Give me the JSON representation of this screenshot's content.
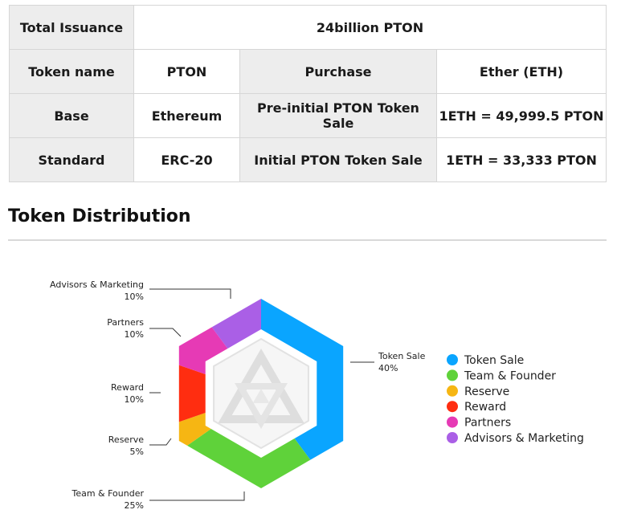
{
  "table": {
    "row1": {
      "label": "Total Issuance",
      "value": "24billion PTON"
    },
    "row2": {
      "label": "Token name",
      "value": "PTON",
      "label2": "Purchase",
      "value2": "Ether (ETH)"
    },
    "row3": {
      "label": "Base",
      "value": "Ethereum",
      "label2": "Pre-initial PTON Token Sale",
      "value2": "1ETH = 49,999.5 PTON"
    },
    "row4": {
      "label": "Standard",
      "value": "ERC-20",
      "label2": "Initial PTON Token Sale",
      "value2": "1ETH = 33,333 PTON"
    }
  },
  "section": {
    "title": "Token Distribution"
  },
  "chart_data": {
    "type": "pie",
    "shape": "hexagonal ring",
    "unit": "%",
    "slices": [
      {
        "name": "Token Sale",
        "value": 40,
        "percent_label": "40%",
        "color": "#0aa5ff"
      },
      {
        "name": "Team & Founder",
        "value": 25,
        "percent_label": "25%",
        "color": "#5fd23a"
      },
      {
        "name": "Reserve",
        "value": 5,
        "percent_label": "5%",
        "color": "#f6b613"
      },
      {
        "name": "Reward",
        "value": 10,
        "percent_label": "10%",
        "color": "#ff2d10"
      },
      {
        "name": "Partners",
        "value": 10,
        "percent_label": "10%",
        "color": "#e63ab5"
      },
      {
        "name": "Advisors & Marketing",
        "value": 10,
        "percent_label": "10%",
        "color": "#aa5fe6"
      }
    ],
    "legend": {
      "placement": "right",
      "items": [
        "Token Sale",
        "Team & Founder",
        "Reserve",
        "Reward",
        "Partners",
        "Advisors & Marketing"
      ]
    }
  },
  "icons": {
    "center": "pton-logo-icon"
  }
}
